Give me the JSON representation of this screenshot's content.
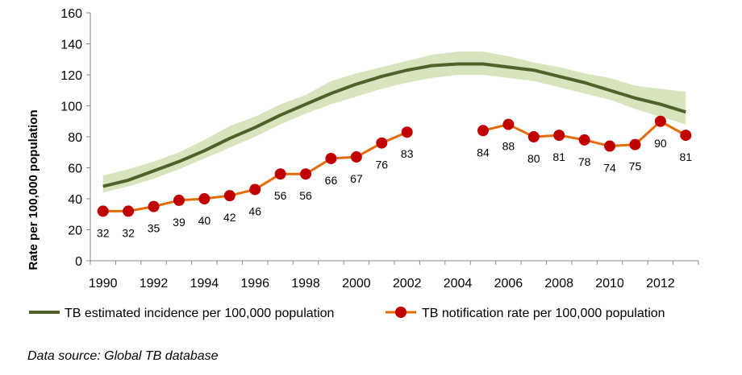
{
  "chart_data": {
    "type": "line",
    "ylabel": "Rate per 100,000 population",
    "xlabel": "",
    "ylim": [
      0,
      160
    ],
    "yticks": [
      0,
      20,
      40,
      60,
      80,
      100,
      120,
      140,
      160
    ],
    "xlim": [
      1989.5,
      2013.5
    ],
    "xticks": [
      1990,
      1992,
      1994,
      1996,
      1998,
      2000,
      2002,
      2004,
      2006,
      2008,
      2010,
      2012
    ],
    "grid": false,
    "legend_position": "bottom",
    "series": [
      {
        "name": "TB estimated incidence per 100,000 population",
        "color": "#4f6228",
        "x": [
          1990,
          1991,
          1992,
          1993,
          1994,
          1995,
          1996,
          1997,
          1998,
          1999,
          2000,
          2001,
          2002,
          2003,
          2004,
          2005,
          2006,
          2007,
          2008,
          2009,
          2010,
          2011,
          2012,
          2013
        ],
        "y": [
          48,
          52,
          58,
          64,
          71,
          79,
          86,
          94,
          101,
          108,
          114,
          119,
          123,
          126,
          127,
          127,
          125,
          123,
          119,
          115,
          110,
          105,
          101,
          96
        ],
        "lower": [
          44,
          48,
          53,
          59,
          66,
          73,
          80,
          88,
          95,
          101,
          106,
          111,
          115,
          118,
          120,
          120,
          118,
          116,
          112,
          108,
          104,
          98,
          93,
          88
        ],
        "upper": [
          55,
          59,
          64,
          70,
          78,
          87,
          93,
          101,
          107,
          116,
          121,
          125,
          129,
          133,
          135,
          135,
          132,
          128,
          125,
          121,
          118,
          113,
          111,
          109
        ],
        "band_color": "#d7e4bd"
      },
      {
        "name": "TB notification rate per 100,000 population",
        "color": "#e36c09",
        "marker_color": "#c00000",
        "x": [
          1990,
          1991,
          1992,
          1993,
          1994,
          1995,
          1996,
          1997,
          1998,
          1999,
          2000,
          2001,
          2002,
          2005,
          2006,
          2007,
          2008,
          2009,
          2010,
          2011,
          2012,
          2013
        ],
        "y": [
          32,
          32,
          35,
          39,
          40,
          42,
          46,
          56,
          56,
          66,
          67,
          76,
          83,
          84,
          88,
          80,
          81,
          78,
          74,
          75,
          90,
          81
        ],
        "labels": [
          "32",
          "32",
          "35",
          "39",
          "40",
          "42",
          "46",
          "56",
          "56",
          "66",
          "67",
          "76",
          "83",
          "84",
          "88",
          "80",
          "81",
          "78",
          "74",
          "75",
          "90",
          "81"
        ]
      }
    ]
  },
  "source_note": "Data source: Global TB database"
}
